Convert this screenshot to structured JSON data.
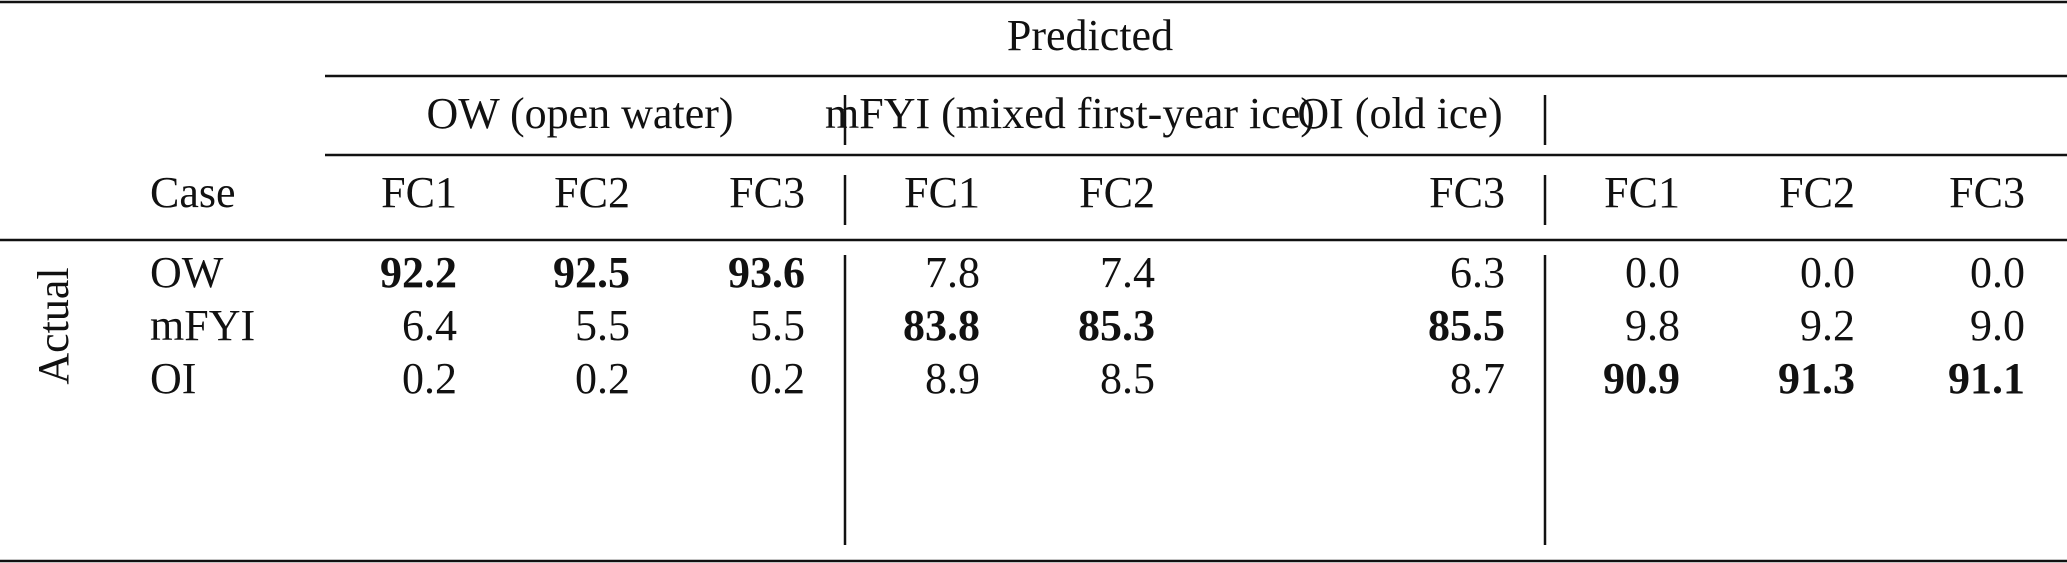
{
  "table": {
    "header": {
      "title": "Predicted",
      "case_label": "Case",
      "groups": [
        {
          "name": "OW (open water)",
          "columns": [
            "FC1",
            "FC2",
            "FC3"
          ]
        },
        {
          "name": "mFYI (mixed first-year ice)",
          "columns": [
            "FC1",
            "FC2",
            "FC3"
          ]
        },
        {
          "name": "OI (old ice)",
          "columns": [
            "FC1",
            "FC2",
            "FC3"
          ]
        }
      ]
    },
    "row_group_label": "Actual",
    "rows": [
      {
        "label": "OW",
        "values": [
          "92.2",
          "92.5",
          "93.6",
          "7.8",
          "7.4",
          "6.3",
          "0.0",
          "0.0",
          "0.0"
        ]
      },
      {
        "label": "mFYI",
        "values": [
          "6.4",
          "5.5",
          "5.5",
          "83.8",
          "85.3",
          "85.5",
          "9.8",
          "9.2",
          "9.0"
        ]
      },
      {
        "label": "OI",
        "values": [
          "0.2",
          "0.2",
          "0.2",
          "8.9",
          "8.5",
          "8.7",
          "90.9",
          "91.3",
          "91.1"
        ]
      }
    ]
  }
}
